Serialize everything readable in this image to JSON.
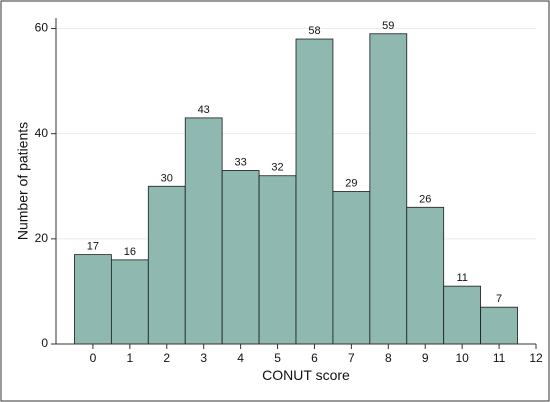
{
  "chart_data": {
    "type": "bar",
    "x": [
      0,
      1,
      2,
      3,
      4,
      5,
      6,
      7,
      8,
      9,
      10,
      11
    ],
    "values": [
      17,
      16,
      30,
      43,
      33,
      32,
      58,
      29,
      59,
      26,
      11,
      7
    ],
    "data_labels": [
      "17",
      "16",
      "30",
      "43",
      "33",
      "32",
      "58",
      "29",
      "59",
      "26",
      "11",
      "7"
    ],
    "bar_width": 1,
    "xlabel": "CONUT score",
    "ylabel": "Number of patients",
    "xlim": [
      -1,
      12
    ],
    "ylim": [
      0,
      62
    ],
    "x_ticks": [
      "0",
      "1",
      "2",
      "3",
      "4",
      "5",
      "6",
      "7",
      "8",
      "9",
      "10",
      "11",
      "12"
    ],
    "y_ticks": [
      "0",
      "20",
      "40",
      "60"
    ],
    "y_tick_values": [
      0,
      20,
      40,
      60
    ],
    "grid": "horizontal",
    "legend": "none",
    "colors": {
      "bar_fill": "#8fb8b0",
      "bar_stroke": "#1a1a1a",
      "grid": "#e6ecec",
      "frame": "#333333"
    }
  }
}
